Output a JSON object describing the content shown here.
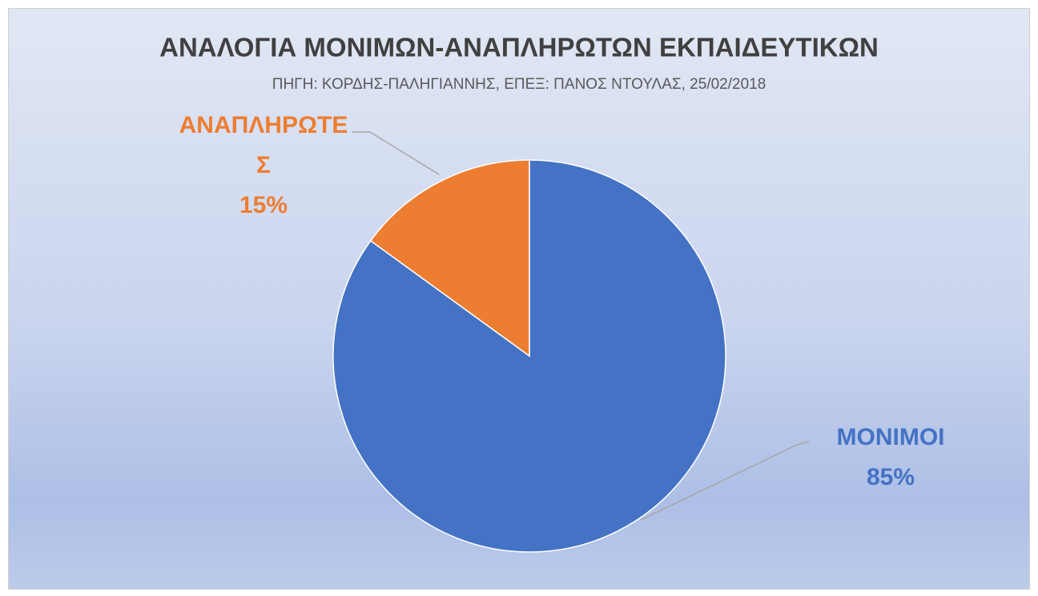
{
  "chart_data": {
    "type": "pie",
    "title": "ΑΝΑΛΟΓΙΑ ΜΟΝΙΜΩΝ-ΑΝΑΠΛΗΡΩΤΩΝ ΕΚΠΑΙΔΕΥΤΙΚΩΝ",
    "subtitle": "ΠΗΓΗ: ΚΟΡΔΗΣ-ΠΑΛΗΓΙΑΝΝΗΣ, ΕΠΕΞ: ΠΑΝΟΣ ΝΤΟΥΛΑΣ, 25/02/2018",
    "categories": [
      "ΜΟΝΙΜΟΙ",
      "ΑΝΑΠΛΗΡΩΤΕΣ"
    ],
    "values": [
      85,
      15
    ],
    "value_labels": [
      "85%",
      "15%"
    ],
    "colors": [
      "#4472c4",
      "#ed7d31"
    ]
  }
}
